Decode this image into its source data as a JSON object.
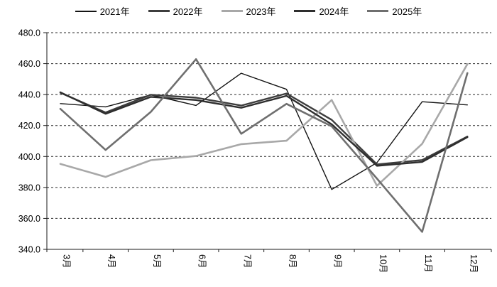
{
  "chart_data": {
    "type": "line",
    "title": "",
    "categories": [
      "3月",
      "4月",
      "5月",
      "6月",
      "7月",
      "8月",
      "9月",
      "10月",
      "11月",
      "12月"
    ],
    "series": [
      {
        "name": "2021年",
        "color": "#141414",
        "width": 1.4,
        "values": [
          434.2,
          432.1,
          439.8,
          433.0,
          453.8,
          443.4,
          378.7,
          396.0,
          435.4,
          433.3
        ]
      },
      {
        "name": "2022年",
        "color": "#3d3d3d",
        "width": 2.4,
        "values": [
          441.2,
          428.4,
          439.9,
          438.0,
          432.9,
          440.7,
          423.7,
          394.9,
          397.7,
          412.9
        ]
      },
      {
        "name": "2023年",
        "color": "#a8a8a8",
        "width": 2.6,
        "values": [
          395.2,
          386.8,
          397.6,
          400.3,
          408.0,
          410.2,
          436.5,
          381.1,
          408.2,
          459.7
        ]
      },
      {
        "name": "2024年",
        "color": "#2e2e2e",
        "width": 2.4,
        "values": [
          441.5,
          427.6,
          438.5,
          436.5,
          431.5,
          439.2,
          420.8,
          394.0,
          396.5,
          412.5
        ]
      },
      {
        "name": "2025年",
        "color": "#6f6f6f",
        "width": 2.6,
        "values": [
          430.8,
          404.2,
          428.8,
          462.9,
          414.7,
          434.0,
          419.5,
          385.7,
          351.3,
          453.9
        ]
      }
    ],
    "xlabel": "",
    "ylabel": "",
    "ylim": [
      340,
      480
    ],
    "ystep": 20,
    "y_tick_labels": [
      "480.0",
      "460.0",
      "440.0",
      "420.0",
      "400.0",
      "380.0",
      "360.0",
      "340.0"
    ],
    "grid": "horizontal-dashed",
    "legend_position": "top",
    "x_labels_rotated_90": true
  },
  "style": {
    "axis_color": "#1a1a1a",
    "grid_color": "#2a2a2a",
    "text_color": "#000000",
    "background": "#ffffff"
  }
}
